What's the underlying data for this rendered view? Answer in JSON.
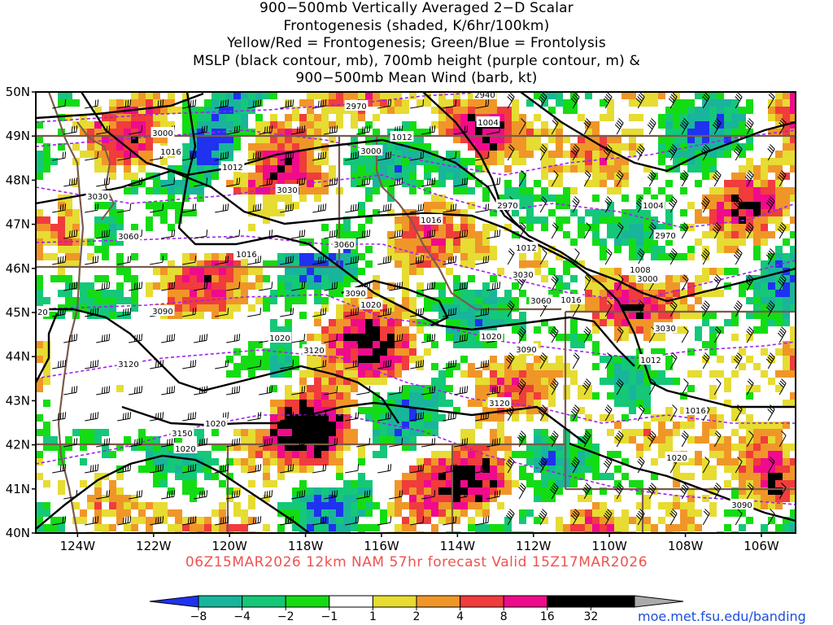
{
  "title_lines": [
    "900−500mb Vertically Averaged 2−D Scalar",
    "Frontogenesis (shaded, K/6hr/100km)",
    "Yellow/Red = Frontogenesis;  Green/Blue = Frontolysis",
    "MSLP (black contour, mb), 700mb height (purple contour, m) &",
    "900−500mb Mean Wind (barb, kt)"
  ],
  "lat_labels": [
    "50N",
    "49N",
    "48N",
    "47N",
    "46N",
    "45N",
    "44N",
    "43N",
    "42N",
    "41N",
    "40N"
  ],
  "lon_labels": [
    "124W",
    "122W",
    "120W",
    "118W",
    "116W",
    "114W",
    "112W",
    "110W",
    "108W",
    "106W"
  ],
  "footer": "06Z15MAR2026 12km NAM 57hr forecast Valid 15Z17MAR2026",
  "credit": "moe.met.fsu.edu/banding",
  "colorbar": {
    "ticks": [
      "−8",
      "−4",
      "−2",
      "−1",
      "1",
      "2",
      "4",
      "8",
      "16",
      "32"
    ],
    "colors": [
      "#1e32f0",
      "#19b49c",
      "#14c878",
      "#14dc14",
      "#ffffff",
      "#e6dc32",
      "#f09628",
      "#f03c3c",
      "#f00a8c",
      "#000000",
      "#aaaaaa"
    ]
  },
  "mslp_labels": [
    "1004",
    "1008",
    "1012",
    "1016",
    "1020"
  ],
  "height_labels": [
    "2940",
    "2970",
    "3000",
    "3030",
    "3060",
    "3090",
    "3120",
    "3150"
  ],
  "contour_labels": [
    {
      "t": "2970"
    },
    {
      "t": "2940"
    },
    {
      "t": "3000"
    },
    {
      "t": "1012"
    },
    {
      "t": "3000"
    },
    {
      "t": "1004"
    },
    {
      "t": "1016"
    },
    {
      "t": "1012"
    },
    {
      "t": "3030"
    },
    {
      "t": "3030"
    },
    {
      "t": "2970"
    },
    {
      "t": "1016"
    },
    {
      "t": "1004"
    },
    {
      "t": "3060"
    },
    {
      "t": "2970"
    },
    {
      "t": "3060"
    },
    {
      "t": "1016"
    },
    {
      "t": "1012"
    },
    {
      "t": "1008"
    },
    {
      "t": "3030"
    },
    {
      "t": "3000"
    },
    {
      "t": "3090"
    },
    {
      "t": "1020"
    },
    {
      "t": "3060"
    },
    {
      "t": "1016"
    },
    {
      "t": "1020"
    },
    {
      "t": "3090"
    },
    {
      "t": "1020"
    },
    {
      "t": "3120"
    },
    {
      "t": "1020"
    },
    {
      "t": "3030"
    },
    {
      "t": "3090"
    },
    {
      "t": "3120"
    },
    {
      "t": "1012"
    },
    {
      "t": "3120"
    },
    {
      "t": "1016"
    },
    {
      "t": "3150"
    },
    {
      "t": "1020"
    },
    {
      "t": "1020"
    },
    {
      "t": "1020"
    },
    {
      "t": "3090"
    }
  ]
}
